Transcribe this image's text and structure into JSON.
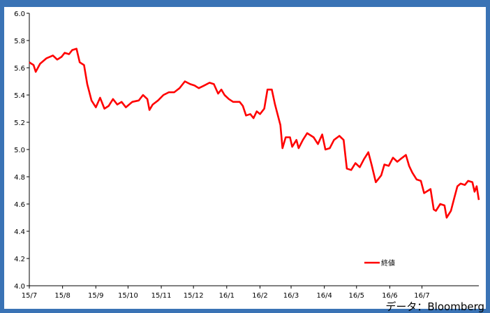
{
  "chart_data": {
    "type": "line",
    "series": [
      {
        "name": "終値",
        "color": "#ff0000",
        "points": [
          [
            0,
            5.64
          ],
          [
            4,
            5.62
          ],
          [
            6,
            5.57
          ],
          [
            10,
            5.63
          ],
          [
            16,
            5.67
          ],
          [
            22,
            5.69
          ],
          [
            26,
            5.66
          ],
          [
            30,
            5.68
          ],
          [
            33,
            5.71
          ],
          [
            37,
            5.7
          ],
          [
            40,
            5.73
          ],
          [
            44,
            5.74
          ],
          [
            47,
            5.64
          ],
          [
            51,
            5.62
          ],
          [
            54,
            5.48
          ],
          [
            58,
            5.36
          ],
          [
            62,
            5.31
          ],
          [
            66,
            5.38
          ],
          [
            70,
            5.3
          ],
          [
            74,
            5.32
          ],
          [
            78,
            5.37
          ],
          [
            82,
            5.33
          ],
          [
            86,
            5.35
          ],
          [
            90,
            5.31
          ],
          [
            96,
            5.35
          ],
          [
            102,
            5.36
          ],
          [
            106,
            5.4
          ],
          [
            110,
            5.37
          ],
          [
            112,
            5.29
          ],
          [
            115,
            5.33
          ],
          [
            120,
            5.36
          ],
          [
            125,
            5.4
          ],
          [
            130,
            5.42
          ],
          [
            135,
            5.42
          ],
          [
            140,
            5.45
          ],
          [
            145,
            5.5
          ],
          [
            150,
            5.48
          ],
          [
            154,
            5.47
          ],
          [
            158,
            5.45
          ],
          [
            163,
            5.47
          ],
          [
            168,
            5.49
          ],
          [
            172,
            5.48
          ],
          [
            176,
            5.41
          ],
          [
            179,
            5.44
          ],
          [
            182,
            5.4
          ],
          [
            186,
            5.37
          ],
          [
            190,
            5.35
          ],
          [
            196,
            5.35
          ],
          [
            199,
            5.32
          ],
          [
            202,
            5.25
          ],
          [
            206,
            5.26
          ],
          [
            209,
            5.23
          ],
          [
            212,
            5.28
          ],
          [
            215,
            5.26
          ],
          [
            219,
            5.3
          ],
          [
            222,
            5.44
          ],
          [
            226,
            5.44
          ],
          [
            229,
            5.33
          ],
          [
            232,
            5.24
          ],
          [
            234,
            5.18
          ],
          [
            236,
            5.01
          ],
          [
            239,
            5.09
          ],
          [
            243,
            5.09
          ],
          [
            245,
            5.02
          ],
          [
            249,
            5.07
          ],
          [
            251,
            5.01
          ],
          [
            255,
            5.07
          ],
          [
            259,
            5.12
          ],
          [
            265,
            5.09
          ],
          [
            269,
            5.04
          ],
          [
            273,
            5.11
          ],
          [
            276,
            5.0
          ],
          [
            280,
            5.01
          ],
          [
            284,
            5.07
          ],
          [
            289,
            5.1
          ],
          [
            293,
            5.07
          ],
          [
            296,
            4.86
          ],
          [
            300,
            4.85
          ],
          [
            304,
            4.9
          ],
          [
            308,
            4.87
          ],
          [
            312,
            4.93
          ],
          [
            316,
            4.98
          ],
          [
            319,
            4.89
          ],
          [
            323,
            4.76
          ],
          [
            328,
            4.81
          ],
          [
            331,
            4.89
          ],
          [
            335,
            4.88
          ],
          [
            339,
            4.94
          ],
          [
            343,
            4.91
          ],
          [
            346,
            4.93
          ],
          [
            351,
            4.96
          ],
          [
            354,
            4.88
          ],
          [
            357,
            4.83
          ],
          [
            361,
            4.78
          ],
          [
            365,
            4.77
          ],
          [
            368,
            4.68
          ],
          [
            374,
            4.71
          ],
          [
            377,
            4.56
          ],
          [
            379,
            4.55
          ],
          [
            383,
            4.6
          ],
          [
            387,
            4.59
          ],
          [
            389,
            4.5
          ],
          [
            393,
            4.55
          ],
          [
            396,
            4.64
          ],
          [
            399,
            4.73
          ],
          [
            402,
            4.75
          ],
          [
            406,
            4.74
          ],
          [
            409,
            4.77
          ],
          [
            413,
            4.76
          ],
          [
            415,
            4.69
          ],
          [
            417,
            4.73
          ],
          [
            419,
            4.63
          ]
        ]
      }
    ],
    "x_ticks": [
      {
        "pos": 0,
        "label": "15/7"
      },
      {
        "pos": 31,
        "label": "15/8"
      },
      {
        "pos": 62,
        "label": "15/9"
      },
      {
        "pos": 92,
        "label": "15/10"
      },
      {
        "pos": 123,
        "label": "15/11"
      },
      {
        "pos": 153,
        "label": "15/12"
      },
      {
        "pos": 184,
        "label": "16/1"
      },
      {
        "pos": 215,
        "label": "16/2"
      },
      {
        "pos": 244,
        "label": "16/3"
      },
      {
        "pos": 275,
        "label": "16/4"
      },
      {
        "pos": 305,
        "label": "16/5"
      },
      {
        "pos": 336,
        "label": "16/6"
      },
      {
        "pos": 366,
        "label": "16/7"
      }
    ],
    "xlim": [
      0,
      419
    ],
    "ylim": [
      4.0,
      6.0
    ],
    "y_ticks": [
      "4.0",
      "4.2",
      "4.4",
      "4.6",
      "4.8",
      "5.0",
      "5.2",
      "5.4",
      "5.6",
      "5.8",
      "6.0"
    ],
    "legend": {
      "label": "終値",
      "placement": "bottom-right"
    },
    "grid": false
  },
  "source_label": "データ：Bloomberg"
}
